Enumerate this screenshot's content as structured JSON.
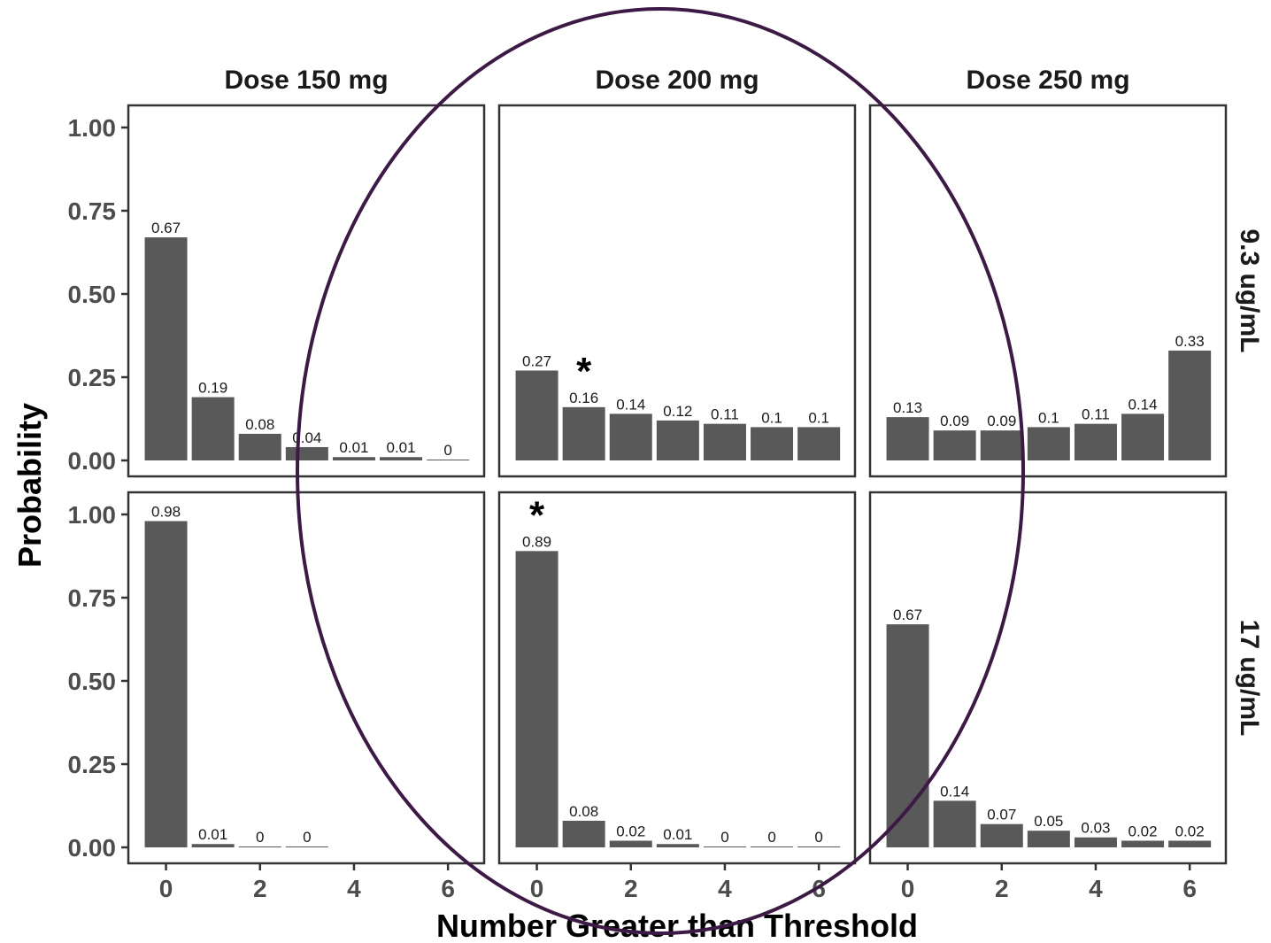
{
  "chart_data": {
    "type": "bar",
    "facet_columns": [
      "Dose 150 mg",
      "Dose 200 mg",
      "Dose 250 mg"
    ],
    "facet_rows": [
      "9.3 ug/mL",
      "17 ug/mL"
    ],
    "xlabel": "Number Greater than Threshold",
    "ylabel": "Probability",
    "ylim": [
      0,
      1.05
    ],
    "yticks": [
      0,
      0.25,
      0.5,
      0.75,
      1.0
    ],
    "ytick_labels": [
      "0.00",
      "0.25",
      "0.50",
      "0.75",
      "1.00"
    ],
    "xticks": [
      0,
      2,
      4,
      6
    ],
    "xtick_labels": [
      "0",
      "2",
      "4",
      "6"
    ],
    "xlim": [
      -0.5,
      6.5
    ],
    "bar_color": "#595959",
    "panels": [
      {
        "row": 0,
        "col": 0,
        "x": [
          0,
          1,
          2,
          3,
          4,
          5,
          6
        ],
        "values": [
          0.67,
          0.19,
          0.08,
          0.04,
          0.01,
          0.01,
          0
        ],
        "labels": [
          "0.67",
          "0.19",
          "0.08",
          "0.04",
          "0.01",
          "0.01",
          "0"
        ]
      },
      {
        "row": 0,
        "col": 1,
        "x": [
          0,
          1,
          2,
          3,
          4,
          5,
          6
        ],
        "values": [
          0.27,
          0.16,
          0.14,
          0.12,
          0.11,
          0.1,
          0.1
        ],
        "labels": [
          "0.27",
          "0.16",
          "0.14",
          "0.12",
          "0.11",
          "0.1",
          "0.1"
        ],
        "star_at": 1
      },
      {
        "row": 0,
        "col": 2,
        "x": [
          0,
          1,
          2,
          3,
          4,
          5,
          6
        ],
        "values": [
          0.13,
          0.09,
          0.09,
          0.1,
          0.11,
          0.14,
          0.33
        ],
        "labels": [
          "0.13",
          "0.09",
          "0.09",
          "0.1",
          "0.11",
          "0.14",
          "0.33"
        ]
      },
      {
        "row": 1,
        "col": 0,
        "x": [
          0,
          1,
          2,
          3
        ],
        "values": [
          0.98,
          0.01,
          0,
          0
        ],
        "labels": [
          "0.98",
          "0.01",
          "0",
          "0"
        ]
      },
      {
        "row": 1,
        "col": 1,
        "x": [
          0,
          1,
          2,
          3,
          4,
          5,
          6
        ],
        "values": [
          0.89,
          0.08,
          0.02,
          0.01,
          0,
          0,
          0
        ],
        "labels": [
          "0.89",
          "0.08",
          "0.02",
          "0.01",
          "0",
          "0",
          "0"
        ],
        "star_at": 0
      },
      {
        "row": 1,
        "col": 2,
        "x": [
          0,
          1,
          2,
          3,
          4,
          5,
          6
        ],
        "values": [
          0.67,
          0.14,
          0.07,
          0.05,
          0.03,
          0.02,
          0.02
        ],
        "labels": [
          "0.67",
          "0.14",
          "0.07",
          "0.05",
          "0.03",
          "0.02",
          "0.02"
        ]
      }
    ],
    "annotations": {
      "star_symbol": "*",
      "ellipse_color": "#3d1a45"
    }
  }
}
